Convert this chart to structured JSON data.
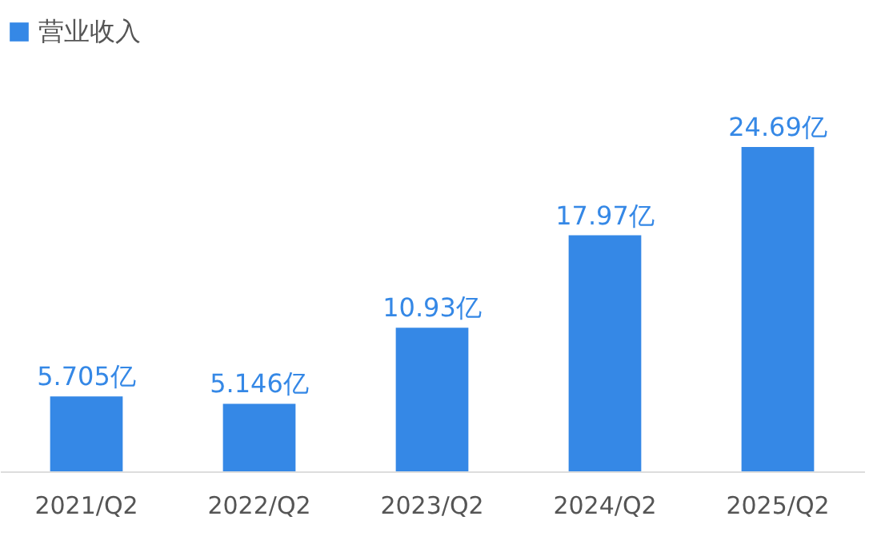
{
  "chart_data": {
    "type": "bar",
    "legend": "top left",
    "categories": [
      "2021/Q2",
      "2022/Q2",
      "2023/Q2",
      "2024/Q2",
      "2025/Q2"
    ],
    "series": [
      {
        "name": "营业收入",
        "color": "#3588e6",
        "values": [
          5.705,
          5.146,
          10.93,
          17.97,
          24.69
        ],
        "value_labels": [
          "5.705亿",
          "5.146亿",
          "10.93亿",
          "17.97亿",
          "24.69亿"
        ]
      }
    ]
  }
}
